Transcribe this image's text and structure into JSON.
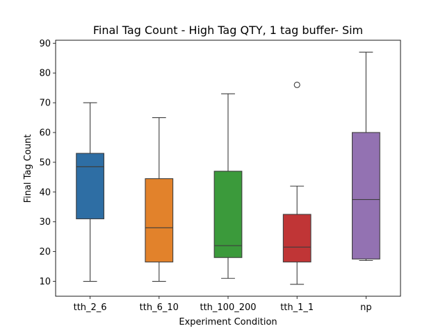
{
  "chart_data": {
    "type": "box",
    "title": "Final Tag Count - High Tag QTY, 1 tag buffer- Sim",
    "xlabel": "Experiment Condition",
    "ylabel": "Final Tag Count",
    "ylim": [
      5,
      91
    ],
    "yticks": [
      10,
      20,
      30,
      40,
      50,
      60,
      70,
      80,
      90
    ],
    "grid": false,
    "categories": [
      "tth_2_6",
      "tth_6_10",
      "tth_100_200",
      "tth_1_1",
      "np"
    ],
    "series": [
      {
        "category": "tth_2_6",
        "color": "#2e6ea4",
        "whisker_low": 10,
        "q1": 31,
        "median": 48.5,
        "q3": 53,
        "whisker_high": 70,
        "outliers": []
      },
      {
        "category": "tth_6_10",
        "color": "#e2822b",
        "whisker_low": 10,
        "q1": 16.5,
        "median": 28,
        "q3": 44.5,
        "whisker_high": 65,
        "outliers": []
      },
      {
        "category": "tth_100_200",
        "color": "#3b9a3b",
        "whisker_low": 11,
        "q1": 18,
        "median": 22,
        "q3": 47,
        "whisker_high": 73,
        "outliers": []
      },
      {
        "category": "tth_1_1",
        "color": "#c03536",
        "whisker_low": 9,
        "q1": 16.5,
        "median": 21.5,
        "q3": 32.5,
        "whisker_high": 42,
        "outliers": [
          76
        ]
      },
      {
        "category": "np",
        "color": "#9372b2",
        "whisker_low": 17,
        "q1": 17.5,
        "median": 37.5,
        "q3": 60,
        "whisker_high": 87,
        "outliers": []
      }
    ]
  }
}
